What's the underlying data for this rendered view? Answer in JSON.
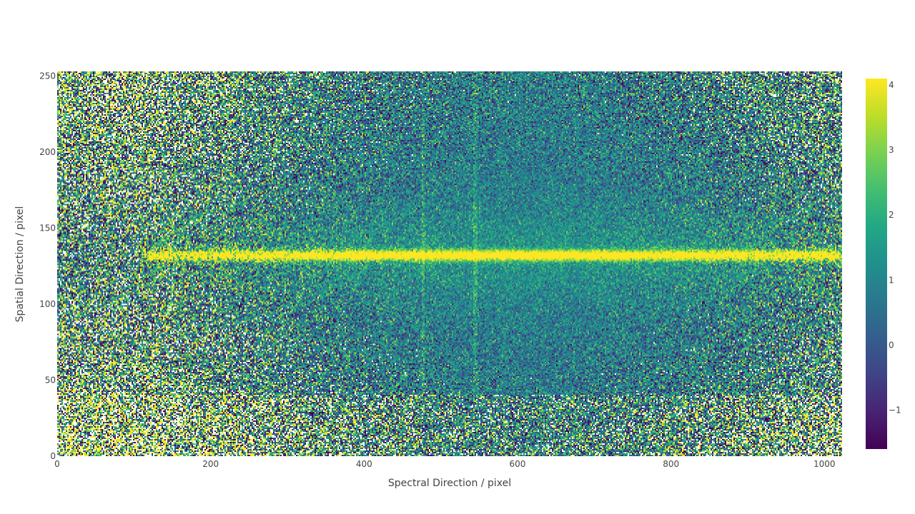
{
  "chart_data": {
    "type": "heatmap",
    "title": "",
    "xlabel": "Spectral Direction / pixel",
    "ylabel": "Spatial Direction / pixel",
    "xlim": [
      0,
      1023
    ],
    "ylim": [
      0,
      253
    ],
    "x_ticks": [
      0,
      200,
      400,
      600,
      800,
      1000
    ],
    "x_tick_labels": [
      "0",
      "200",
      "400",
      "600",
      "800",
      "1000"
    ],
    "y_ticks": [
      0,
      50,
      100,
      150,
      200,
      250
    ],
    "y_tick_labels": [
      "0",
      "50",
      "100",
      "150",
      "200",
      "250"
    ],
    "colorscale": "viridis",
    "zlim": [
      -1.6,
      4.1
    ],
    "colorbar_ticks": [
      -1,
      0,
      1,
      2,
      3,
      4
    ],
    "colorbar_tick_labels": [
      "−1",
      "0",
      "1",
      "2",
      "3",
      "4"
    ],
    "trace": {
      "center_y": 132,
      "x_start": 110,
      "x_end": 1023,
      "peak_value": 4.0
    },
    "vertical_features": [
      {
        "x": 477,
        "type": "sky-line"
      },
      {
        "x": 545,
        "type": "sky-line"
      },
      {
        "x": 903,
        "type": "absorption"
      }
    ],
    "background_level": 0.8
  }
}
